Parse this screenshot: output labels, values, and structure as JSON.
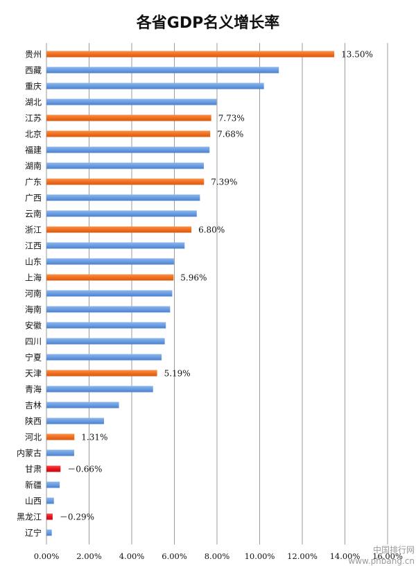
{
  "chart_data": {
    "type": "bar",
    "orientation": "horizontal",
    "title": "各省GDP名义增长率",
    "categories": [
      "贵州",
      "西藏",
      "重庆",
      "湖北",
      "江苏",
      "北京",
      "福建",
      "湖南",
      "广东",
      "广西",
      "云南",
      "浙江",
      "江西",
      "山东",
      "上海",
      "河南",
      "海南",
      "安徽",
      "四川",
      "宁夏",
      "天津",
      "青海",
      "吉林",
      "陕西",
      "河北",
      "内蒙古",
      "甘肃",
      "新疆",
      "山西",
      "黑龙江",
      "辽宁"
    ],
    "values": [
      13.5,
      10.9,
      10.2,
      7.98,
      7.73,
      7.68,
      7.65,
      7.38,
      7.39,
      7.2,
      7.05,
      6.8,
      6.48,
      5.98,
      5.96,
      5.9,
      5.8,
      5.6,
      5.55,
      5.4,
      5.19,
      5.0,
      3.4,
      2.7,
      1.31,
      1.3,
      -0.66,
      0.62,
      0.35,
      -0.29,
      0.25
    ],
    "bar_colors": [
      "orange",
      "blue",
      "blue",
      "blue",
      "orange",
      "orange",
      "blue",
      "blue",
      "orange",
      "blue",
      "blue",
      "orange",
      "blue",
      "blue",
      "orange",
      "blue",
      "blue",
      "blue",
      "blue",
      "blue",
      "orange",
      "blue",
      "blue",
      "blue",
      "orange",
      "blue",
      "red",
      "blue",
      "blue",
      "red",
      "blue"
    ],
    "data_labels": [
      "13.50%",
      "",
      "",
      "",
      "7.73%",
      "7.68%",
      "",
      "",
      "7.39%",
      "",
      "",
      "6.80%",
      "",
      "",
      "5.96%",
      "",
      "",
      "",
      "",
      "",
      "5.19%",
      "",
      "",
      "",
      "1.31%",
      "",
      "－0.66%",
      "",
      "",
      "－0.29%",
      ""
    ],
    "xlim": [
      0,
      16
    ],
    "xticks": [
      0,
      2,
      4,
      6,
      8,
      10,
      12,
      14,
      16
    ],
    "xtick_labels": [
      "0.00%",
      "2.00%",
      "4.00%",
      "6.00%",
      "8.00%",
      "10.00%",
      "12.00%",
      "14.00%",
      "16.00%"
    ],
    "grid": true,
    "xlabel": "",
    "ylabel": ""
  },
  "colors": {
    "orange": "#F07020",
    "blue": "#6A9DE0",
    "red": "#E8141C",
    "grid": "#9a9a9a"
  },
  "watermark": {
    "line1": "中国排行网",
    "line2": "www.phbang.cn"
  }
}
